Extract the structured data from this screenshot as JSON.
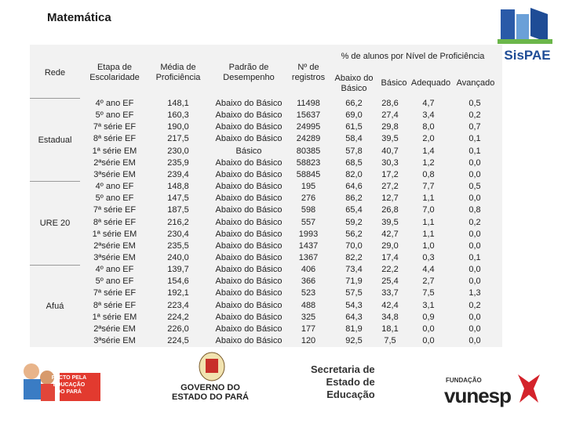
{
  "title": "Matemática",
  "table": {
    "headers": {
      "rede": "Rede",
      "etapa": "Etapa de\nEscolaridade",
      "media": "Média de\nProficiência",
      "padrao": "Padrão de\nDesempenho",
      "registros": "Nº de\nregistros",
      "percent": "% de alunos por Nível de Proficiência",
      "abaixo": "Abaixo do\nBásico",
      "basico": "Básico",
      "adequado": "Adequado",
      "avancado": "Avançado"
    },
    "groups": [
      {
        "name": "Estadual",
        "rows": [
          [
            "4º ano EF",
            "148,1",
            "Abaixo do Básico",
            "11498",
            "66,2",
            "28,6",
            "4,7",
            "0,5"
          ],
          [
            "5º ano EF",
            "160,3",
            "Abaixo do Básico",
            "15637",
            "69,0",
            "27,4",
            "3,4",
            "0,2"
          ],
          [
            "7ª série EF",
            "190,0",
            "Abaixo do Básico",
            "24995",
            "61,5",
            "29,8",
            "8,0",
            "0,7"
          ],
          [
            "8ª série EF",
            "217,5",
            "Abaixo do Básico",
            "24289",
            "58,4",
            "39,5",
            "2,0",
            "0,1"
          ],
          [
            "1ª série EM",
            "230,0",
            "Básico",
            "80385",
            "57,8",
            "40,7",
            "1,4",
            "0,1"
          ],
          [
            "2ªsérie EM",
            "235,9",
            "Abaixo do Básico",
            "58823",
            "68,5",
            "30,3",
            "1,2",
            "0,0"
          ],
          [
            "3ªsérie EM",
            "239,4",
            "Abaixo do Básico",
            "58845",
            "82,0",
            "17,2",
            "0,8",
            "0,0"
          ]
        ]
      },
      {
        "name": "URE 20",
        "rows": [
          [
            "4º ano EF",
            "148,8",
            "Abaixo do Básico",
            "195",
            "64,6",
            "27,2",
            "7,7",
            "0,5"
          ],
          [
            "5º ano EF",
            "147,5",
            "Abaixo do Básico",
            "276",
            "86,2",
            "12,7",
            "1,1",
            "0,0"
          ],
          [
            "7ª série EF",
            "187,5",
            "Abaixo do Básico",
            "598",
            "65,4",
            "26,8",
            "7,0",
            "0,8"
          ],
          [
            "8ª série EF",
            "216,2",
            "Abaixo do Básico",
            "557",
            "59,2",
            "39,5",
            "1,1",
            "0,2"
          ],
          [
            "1ª série EM",
            "230,4",
            "Abaixo do Básico",
            "1993",
            "56,2",
            "42,7",
            "1,1",
            "0,0"
          ],
          [
            "2ªsérie EM",
            "235,5",
            "Abaixo do Básico",
            "1437",
            "70,0",
            "29,0",
            "1,0",
            "0,0"
          ],
          [
            "3ªsérie EM",
            "240,0",
            "Abaixo do Básico",
            "1367",
            "82,2",
            "17,4",
            "0,3",
            "0,1"
          ]
        ]
      },
      {
        "name": "Afuá",
        "rows": [
          [
            "4º ano EF",
            "139,7",
            "Abaixo do Básico",
            "406",
            "73,4",
            "22,2",
            "4,4",
            "0,0"
          ],
          [
            "5º ano EF",
            "154,6",
            "Abaixo do Básico",
            "366",
            "71,9",
            "25,4",
            "2,7",
            "0,0"
          ],
          [
            "7ª série EF",
            "192,1",
            "Abaixo do Básico",
            "523",
            "57,5",
            "33,7",
            "7,5",
            "1,3"
          ],
          [
            "8ª série EF",
            "223,4",
            "Abaixo do Básico",
            "488",
            "54,3",
            "42,4",
            "3,1",
            "0,2"
          ],
          [
            "1ª série EM",
            "224,2",
            "Abaixo do Básico",
            "325",
            "64,3",
            "34,8",
            "0,9",
            "0,0"
          ],
          [
            "2ªsérie EM",
            "226,0",
            "Abaixo do Básico",
            "177",
            "81,9",
            "18,1",
            "0,0",
            "0,0"
          ],
          [
            "3ªsérie EM",
            "224,5",
            "Abaixo do Básico",
            "120",
            "92,5",
            "7,5",
            "0,0",
            "0,0"
          ]
        ]
      }
    ]
  },
  "logos": {
    "sispae": "SisPAE",
    "pacto": "PACTO PELA\nEDUCAÇÃO\nDO PARÁ",
    "governo": "GOVERNO DO\nESTADO DO PARÁ",
    "secretaria": "Secretaria de\nEstado de\nEducação",
    "fundacao": "FUNDAÇÃO",
    "vunesp": "vunesp"
  }
}
